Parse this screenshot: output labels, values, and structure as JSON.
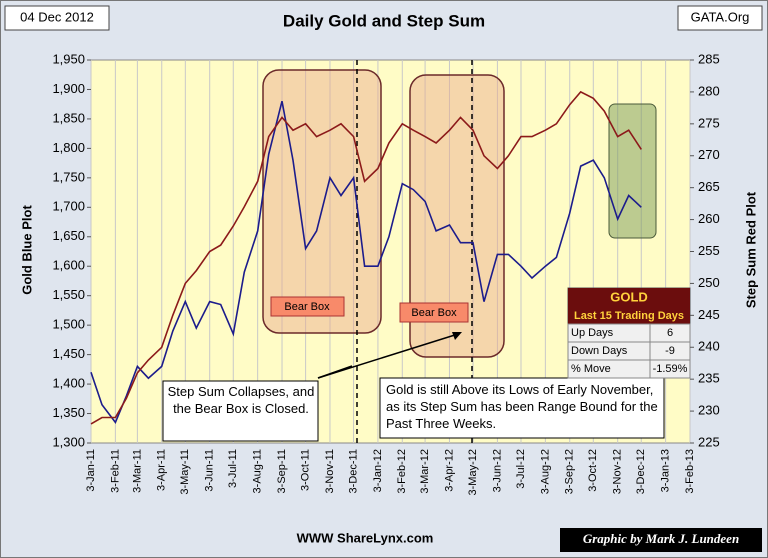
{
  "date_label": "04 Dec 2012",
  "source": "GATA.Org",
  "footer": "WWW ShareLynx.com",
  "credit": "Graphic by Mark J. Lundeen",
  "table": {
    "title": "GOLD",
    "subtitle": "Last 15 Trading Days",
    "rows": [
      [
        "Up Days",
        "6"
      ],
      [
        "Down Days",
        "-9"
      ],
      [
        "% Move",
        "-1.59%"
      ]
    ]
  },
  "chart_data": {
    "type": "line",
    "title": "Daily Gold and Step Sum",
    "ylabel": "Gold Blue Plot",
    "y2label": "Step Sum Red Plot",
    "grid": "x",
    "annotations": [
      "Bear Box",
      "Bear Box",
      "Step Sum Collapses, and the Bear Box is Closed.",
      "Gold is still Above its Lows of Early November, as its Step Sum has been Range Bound for the Past Three Weeks."
    ],
    "x": [
      "2011-01-03",
      "2011-01-17",
      "2011-02-03",
      "2011-02-17",
      "2011-03-03",
      "2011-03-17",
      "2011-04-03",
      "2011-04-17",
      "2011-05-03",
      "2011-05-17",
      "2011-06-03",
      "2011-06-17",
      "2011-07-03",
      "2011-07-17",
      "2011-08-03",
      "2011-08-17",
      "2011-09-03",
      "2011-09-17",
      "2011-10-03",
      "2011-10-17",
      "2011-11-03",
      "2011-11-17",
      "2011-12-03",
      "2011-12-17",
      "2012-01-03",
      "2012-01-17",
      "2012-02-03",
      "2012-02-17",
      "2012-03-03",
      "2012-03-17",
      "2012-04-03",
      "2012-04-17",
      "2012-05-03",
      "2012-05-17",
      "2012-06-03",
      "2012-06-17",
      "2012-07-03",
      "2012-07-17",
      "2012-08-03",
      "2012-08-17",
      "2012-09-03",
      "2012-09-17",
      "2012-10-03",
      "2012-10-17",
      "2012-11-03",
      "2012-11-17",
      "2012-12-03"
    ],
    "series": [
      {
        "name": "Gold",
        "color": "#1c1c8c",
        "values": [
          1420,
          1365,
          1335,
          1380,
          1430,
          1410,
          1430,
          1490,
          1540,
          1495,
          1540,
          1535,
          1485,
          1590,
          1660,
          1790,
          1880,
          1780,
          1630,
          1660,
          1750,
          1720,
          1750,
          1600,
          1600,
          1650,
          1740,
          1730,
          1710,
          1660,
          1670,
          1640,
          1640,
          1540,
          1620,
          1620,
          1600,
          1580,
          1600,
          1615,
          1690,
          1770,
          1780,
          1750,
          1680,
          1720,
          1700
        ]
      },
      {
        "name": "Step Sum",
        "color": "#8c1a1a",
        "axis": "y2",
        "values": [
          228,
          229,
          229,
          232,
          236,
          238,
          240,
          245,
          250,
          252,
          255,
          256,
          259,
          262,
          266,
          273,
          276,
          274,
          275,
          273,
          274,
          275,
          273,
          266,
          268,
          272,
          275,
          274,
          273,
          272,
          274,
          276,
          274,
          270,
          268,
          270,
          273,
          273,
          274,
          275,
          278,
          280,
          279,
          277,
          273,
          274,
          271
        ]
      }
    ],
    "xlim": [
      "2011-01-03",
      "2013-02-03"
    ],
    "xticks": [
      {
        "value": "2011-01-03",
        "label": "3-Jan-11"
      },
      {
        "value": "2011-02-03",
        "label": "3-Feb-11"
      },
      {
        "value": "2011-03-03",
        "label": "3-Mar-11"
      },
      {
        "value": "2011-04-03",
        "label": "3-Apr-11"
      },
      {
        "value": "2011-05-03",
        "label": "3-May-11"
      },
      {
        "value": "2011-06-03",
        "label": "3-Jun-11"
      },
      {
        "value": "2011-07-03",
        "label": "3-Jul-11"
      },
      {
        "value": "2011-08-03",
        "label": "3-Aug-11"
      },
      {
        "value": "2011-09-03",
        "label": "3-Sep-11"
      },
      {
        "value": "2011-10-03",
        "label": "3-Oct-11"
      },
      {
        "value": "2011-11-03",
        "label": "3-Nov-11"
      },
      {
        "value": "2011-12-03",
        "label": "3-Dec-11"
      },
      {
        "value": "2012-01-03",
        "label": "3-Jan-12"
      },
      {
        "value": "2012-02-03",
        "label": "3-Feb-12"
      },
      {
        "value": "2012-03-03",
        "label": "3-Mar-12"
      },
      {
        "value": "2012-04-03",
        "label": "3-Apr-12"
      },
      {
        "value": "2012-05-03",
        "label": "3-May-12"
      },
      {
        "value": "2012-06-03",
        "label": "3-Jun-12"
      },
      {
        "value": "2012-07-03",
        "label": "3-Jul-12"
      },
      {
        "value": "2012-08-03",
        "label": "3-Aug-12"
      },
      {
        "value": "2012-09-03",
        "label": "3-Sep-12"
      },
      {
        "value": "2012-10-03",
        "label": "3-Oct-12"
      },
      {
        "value": "2012-11-03",
        "label": "3-Nov-12"
      },
      {
        "value": "2012-12-03",
        "label": "3-Dec-12"
      },
      {
        "value": "2013-01-03",
        "label": "3-Jan-13"
      },
      {
        "value": "2013-02-03",
        "label": "3-Feb-13"
      }
    ],
    "ylim": [
      1300,
      1950
    ],
    "yticks": [
      {
        "value": 1300,
        "label": "1,300"
      },
      {
        "value": 1350,
        "label": "1,350"
      },
      {
        "value": 1400,
        "label": "1,400"
      },
      {
        "value": 1450,
        "label": "1,450"
      },
      {
        "value": 1500,
        "label": "1,500"
      },
      {
        "value": 1550,
        "label": "1,550"
      },
      {
        "value": 1600,
        "label": "1,600"
      },
      {
        "value": 1650,
        "label": "1,650"
      },
      {
        "value": 1700,
        "label": "1,700"
      },
      {
        "value": 1750,
        "label": "1,750"
      },
      {
        "value": 1800,
        "label": "1,800"
      },
      {
        "value": 1850,
        "label": "1,850"
      },
      {
        "value": 1900,
        "label": "1,900"
      },
      {
        "value": 1950,
        "label": "1,950"
      }
    ],
    "y2lim": [
      225,
      285
    ],
    "y2ticks": [
      225,
      230,
      235,
      240,
      245,
      250,
      255,
      260,
      265,
      270,
      275,
      280,
      285
    ]
  }
}
